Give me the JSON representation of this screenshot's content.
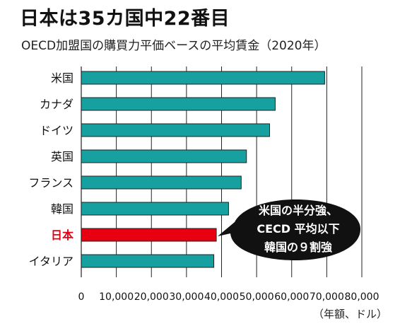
{
  "header": {
    "title": "日本は35カ国中22番目",
    "subtitle": "OECD加盟国の購買力平価ベースの平均賃金（2020年）"
  },
  "chart_data": {
    "type": "bar",
    "orientation": "horizontal",
    "categories": [
      "米国",
      "カナダ",
      "ドイツ",
      "英国",
      "フランス",
      "韓国",
      "日本",
      "イタリア"
    ],
    "values": [
      69400,
      55300,
      53700,
      47100,
      45600,
      42000,
      38500,
      37800
    ],
    "xlim": [
      0,
      80000
    ],
    "xticks": [
      0,
      10000,
      20000,
      30000,
      40000,
      50000,
      60000,
      70000,
      80000
    ],
    "xtick_labels": [
      "0",
      "10,000",
      "20,000",
      "30,000",
      "40,000",
      "50,000",
      "60,000",
      "70,000",
      "80,000"
    ],
    "unit_label": "（年額、ドル）",
    "grid": "vertical",
    "highlight_category": "日本",
    "colors": {
      "bar": "#17a0a0",
      "highlight": "#e60012",
      "callout": "#111111",
      "label_highlight": "#e60012"
    },
    "callout": [
      "米国の半分強、",
      "CECD 平均以下",
      "韓国の９割強"
    ]
  }
}
